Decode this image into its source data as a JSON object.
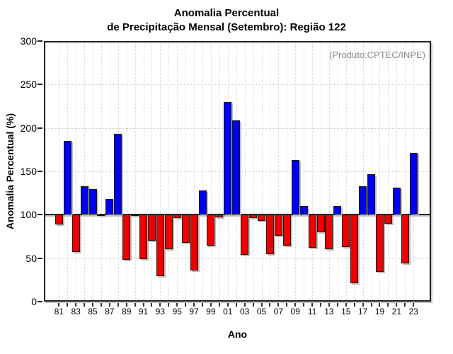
{
  "chart_data": {
    "type": "bar",
    "title_lines": [
      "Anomalia Percentual",
      "de Precipitação Mensal (Setembro): Região 122"
    ],
    "source_note": "(Produto:CPTEC/INPE)",
    "xlabel": "Ano",
    "ylabel": "Anomalia Percentual (%)",
    "ylim": [
      0,
      300
    ],
    "yticks": [
      0,
      50,
      100,
      150,
      200,
      250,
      300
    ],
    "baseline": 100,
    "grid": "dotted",
    "legend": "none",
    "xtick_label_every": 2,
    "bar_color_above_baseline": "#0000ee",
    "bar_color_below_baseline": "#ee0000",
    "bar_border_color": "#1a1a1a",
    "categories": [
      "81",
      "82",
      "83",
      "84",
      "85",
      "86",
      "87",
      "88",
      "89",
      "90",
      "91",
      "92",
      "93",
      "94",
      "95",
      "96",
      "97",
      "98",
      "99",
      "00",
      "01",
      "02",
      "03",
      "04",
      "05",
      "06",
      "07",
      "08",
      "09",
      "10",
      "11",
      "12",
      "13",
      "14",
      "15",
      "16",
      "17",
      "18",
      "19",
      "20",
      "21",
      "22",
      "23"
    ],
    "values": [
      89,
      185,
      57,
      133,
      130,
      99,
      118,
      193,
      48,
      100,
      49,
      70,
      29,
      60,
      96,
      68,
      36,
      128,
      64,
      97,
      230,
      209,
      54,
      96,
      93,
      55,
      76,
      64,
      163,
      110,
      62,
      80,
      60,
      110,
      63,
      21,
      133,
      147,
      34,
      90,
      131,
      44,
      171
    ]
  }
}
